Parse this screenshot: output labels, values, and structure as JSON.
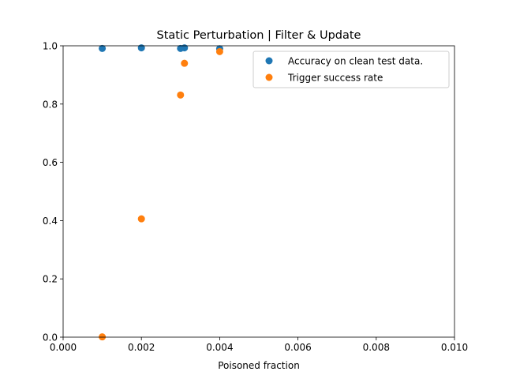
{
  "chart_data": {
    "type": "scatter",
    "title": "Static Perturbation | Filter & Update",
    "xlabel": "Poisoned fraction",
    "ylabel": "",
    "xlim": [
      0.0,
      0.01
    ],
    "ylim": [
      0.0,
      1.0
    ],
    "x_ticks": [
      "0.000",
      "0.002",
      "0.004",
      "0.006",
      "0.008",
      "0.010"
    ],
    "y_ticks": [
      "0.0",
      "0.2",
      "0.4",
      "0.6",
      "0.8",
      "1.0"
    ],
    "grid": false,
    "legend_position": "top-right",
    "series": [
      {
        "name": "Accuracy on clean test data.",
        "color": "#1f77b4",
        "x": [
          0.001,
          0.002,
          0.003,
          0.0031,
          0.004
        ],
        "y": [
          0.991,
          0.993,
          0.991,
          0.993,
          0.99
        ]
      },
      {
        "name": "Trigger success rate",
        "color": "#ff7f0e",
        "x": [
          0.001,
          0.002,
          0.003,
          0.0031,
          0.004
        ],
        "y": [
          0.001,
          0.406,
          0.831,
          0.94,
          0.98
        ]
      }
    ]
  }
}
